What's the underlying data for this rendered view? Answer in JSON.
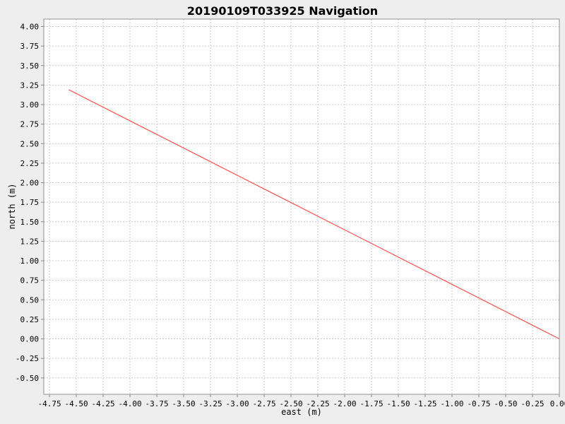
{
  "window": {
    "background": "#EEEEEE"
  },
  "chart_data": {
    "type": "line",
    "title": "20190109T033925 Navigation",
    "xlabel": "east (m)",
    "ylabel": "north (m)",
    "xlim": [
      -4.803,
      0.0
    ],
    "ylim": [
      -0.71,
      4.095
    ],
    "xticks": [
      -4.75,
      -4.5,
      -4.25,
      -4.0,
      -3.75,
      -3.5,
      -3.25,
      -3.0,
      -2.75,
      -2.5,
      -2.25,
      -2.0,
      -1.75,
      -1.5,
      -1.25,
      -1.0,
      -0.75,
      -0.5,
      -0.25,
      0.0
    ],
    "yticks": [
      -0.5,
      -0.25,
      0.0,
      0.25,
      0.5,
      0.75,
      1.0,
      1.25,
      1.5,
      1.75,
      2.0,
      2.25,
      2.5,
      2.75,
      3.0,
      3.25,
      3.5,
      3.75,
      4.0
    ],
    "tick_format_decimals": 2,
    "grid": true,
    "legend": "none",
    "series": [
      {
        "color": "#FF5050",
        "points": [
          [
            -4.57,
            3.19
          ],
          [
            0.0,
            0.0
          ]
        ]
      }
    ],
    "colors": {
      "outer_background": "#EEEEEE",
      "plot_background": "#FFFFFF",
      "gridline": "#CCCCCC",
      "border": "#909090",
      "tick": "#888888",
      "text": "#000000"
    }
  }
}
